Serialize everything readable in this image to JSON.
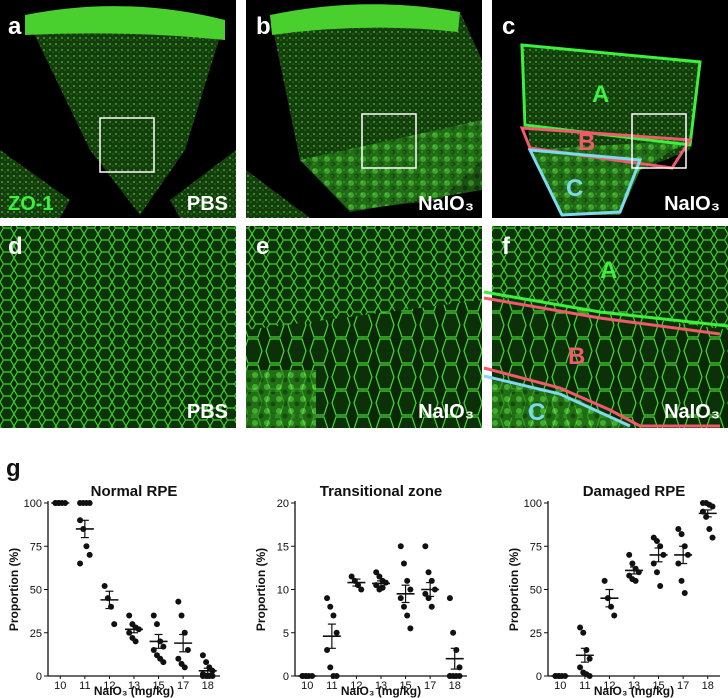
{
  "panels": [
    {
      "letter": "a",
      "label": "PBS"
    },
    {
      "letter": "b",
      "label": "NaIO₃"
    },
    {
      "letter": "c",
      "label": "NaIO₃"
    },
    {
      "letter": "d",
      "label": "PBS"
    },
    {
      "letter": "e",
      "label": "NaIO₃"
    },
    {
      "letter": "f",
      "label": "NaIO₃"
    }
  ],
  "stain": "ZO-1",
  "regions": [
    "A",
    "B",
    "C"
  ],
  "panel_g": "g",
  "chart_data": [
    {
      "type": "dotplot",
      "title": "Normal RPE",
      "y_label": "Proportion (%)",
      "x_label": "NaIO₃ (mg/kg)",
      "categories": [
        "10",
        "11",
        "12",
        "13",
        "15",
        "17",
        "18"
      ],
      "points": [
        [
          100,
          100,
          100,
          100,
          100,
          100
        ],
        [
          100,
          100,
          100,
          100,
          90,
          85,
          75,
          70,
          65
        ],
        [
          52,
          45,
          40,
          30
        ],
        [
          35,
          30,
          28,
          27,
          25,
          22,
          20
        ],
        [
          35,
          30,
          20,
          17,
          15,
          12,
          10,
          8
        ],
        [
          43,
          35,
          25,
          15,
          10,
          7,
          5
        ],
        [
          12,
          8,
          5,
          3,
          1,
          0,
          0,
          0,
          0
        ]
      ],
      "means": [
        100,
        85,
        44,
        27,
        20,
        19,
        3
      ],
      "sems": [
        0,
        5,
        5,
        2,
        4,
        5,
        1.5
      ],
      "ylim": [
        0,
        100
      ],
      "yticks": [
        0,
        25,
        50,
        75,
        100
      ],
      "color": "#111111"
    },
    {
      "type": "dotplot",
      "title": "Transitional zone",
      "y_label": "Proportion (%)",
      "x_label": "NaIO₃ (mg/kg)",
      "categories": [
        "10",
        "11",
        "12",
        "13",
        "15",
        "17",
        "18"
      ],
      "points": [
        [
          0,
          0,
          0,
          0,
          0,
          0
        ],
        [
          9,
          8,
          7,
          5,
          3,
          1,
          0,
          0
        ],
        [
          11.5,
          11,
          10.5,
          10
        ],
        [
          12,
          11.5,
          11,
          10.8,
          10.5,
          10,
          10.2
        ],
        [
          15,
          13,
          11,
          10,
          9,
          8,
          7,
          5.5
        ],
        [
          15,
          12,
          11,
          10,
          9.5,
          9,
          8
        ],
        [
          9,
          5,
          3,
          1,
          0,
          0,
          0,
          0,
          0
        ]
      ],
      "means": [
        0,
        4.6,
        10.8,
        10.7,
        9.5,
        10,
        2
      ],
      "sems": [
        0,
        1.4,
        0.4,
        0.3,
        1,
        0.8,
        1.2
      ],
      "ylim": [
        0,
        20
      ],
      "yticks": [
        0,
        5,
        10,
        15,
        20
      ],
      "color": "#111111"
    },
    {
      "type": "dotplot",
      "title": "Damaged RPE",
      "y_label": "Proportion (%)",
      "x_label": "NaIO₃ (mg/kg)",
      "categories": [
        "10",
        "11",
        "12",
        "13",
        "15",
        "17",
        "18"
      ],
      "points": [
        [
          0,
          0,
          0,
          0,
          0,
          0
        ],
        [
          28,
          25,
          15,
          10,
          5,
          2,
          1,
          0
        ],
        [
          55,
          45,
          40,
          35
        ],
        [
          70,
          65,
          62,
          60,
          58,
          56,
          55
        ],
        [
          80,
          78,
          75,
          70,
          65,
          60,
          52
        ],
        [
          85,
          82,
          75,
          70,
          65,
          55,
          48
        ],
        [
          100,
          100,
          99,
          98,
          95,
          92,
          85,
          80
        ]
      ],
      "means": [
        0,
        12,
        45,
        61,
        70,
        70,
        94
      ],
      "sems": [
        0,
        4,
        5,
        2,
        4,
        5,
        2
      ],
      "ylim": [
        0,
        100
      ],
      "yticks": [
        0,
        25,
        50,
        75,
        100
      ],
      "color": "#111111"
    }
  ]
}
